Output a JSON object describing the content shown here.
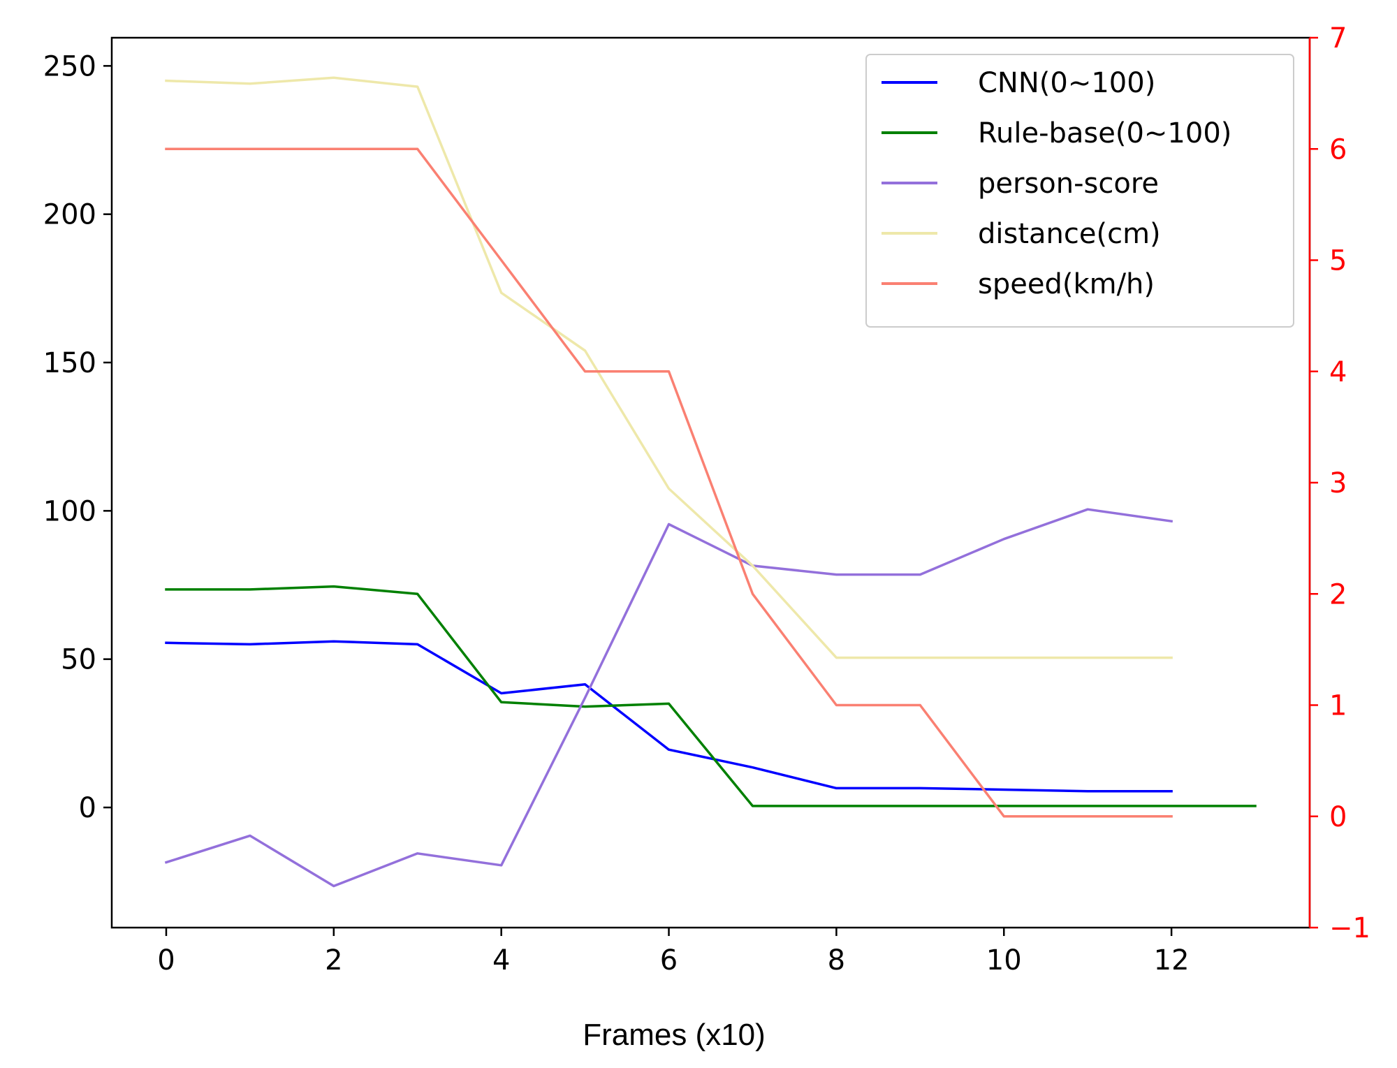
{
  "chart_data": {
    "type": "line",
    "title": "",
    "xlabel": "Frames (x10)",
    "ylabel_left": "",
    "ylabel_right": "",
    "xlim": [
      -0.65,
      13.65
    ],
    "ylim_left": [
      -40.5,
      259.5
    ],
    "ylim_right": [
      -1,
      7
    ],
    "xticks": [
      0,
      2,
      4,
      6,
      8,
      10,
      12
    ],
    "yticks_left": [
      0,
      50,
      100,
      150,
      200,
      250
    ],
    "yticks_right": [
      -1,
      0,
      1,
      2,
      3,
      4,
      5,
      6,
      7
    ],
    "yticks_right_labels": [
      "−1",
      "0",
      "1",
      "2",
      "3",
      "4",
      "5",
      "6",
      "7"
    ],
    "right_axis_color": "#ff0000",
    "grid": false,
    "legend_position": "top-right",
    "series": [
      {
        "name": "CNN(0~100)",
        "axis": "left",
        "color": "#0000ff",
        "x": [
          0,
          1,
          2,
          3,
          4,
          5,
          6,
          7,
          8,
          9,
          10,
          11,
          12
        ],
        "values": [
          55.5,
          55,
          56,
          55,
          38.5,
          41.5,
          19.5,
          13.5,
          6.5,
          6.5,
          6,
          5.5,
          5.5
        ]
      },
      {
        "name": "Rule-base(0~100)",
        "axis": "left",
        "color": "#008000",
        "x": [
          0,
          1,
          2,
          3,
          4,
          5,
          6,
          7,
          8,
          9,
          10,
          11,
          12,
          13
        ],
        "values": [
          73.5,
          73.5,
          74.5,
          72,
          35.5,
          34,
          35,
          0.5,
          0.5,
          0.5,
          0.5,
          0.5,
          0.5,
          0.5
        ]
      },
      {
        "name": "person-score",
        "axis": "left",
        "color": "#9370db",
        "x": [
          0,
          1,
          2,
          3,
          4,
          5,
          6,
          7,
          8,
          9,
          10,
          11,
          12
        ],
        "values": [
          -18.5,
          -9.5,
          -26.5,
          -15.5,
          -19.5,
          37,
          95.5,
          81.5,
          78.5,
          78.5,
          90.5,
          100.5,
          96.5
        ]
      },
      {
        "name": "distance(cm)",
        "axis": "left",
        "color": "#eee8aa",
        "x": [
          0,
          1,
          2,
          3,
          4,
          5,
          6,
          7,
          8,
          9,
          10,
          11,
          12
        ],
        "values": [
          245,
          244,
          246,
          243,
          173.5,
          154,
          107.5,
          81.5,
          50.5,
          50.5,
          50.5,
          50.5,
          50.5
        ]
      },
      {
        "name": "speed(km/h)",
        "axis": "right",
        "color": "#fa8072",
        "x": [
          0,
          1,
          2,
          3,
          4,
          5,
          6,
          7,
          8,
          9,
          10,
          11,
          12
        ],
        "values": [
          6,
          6,
          6,
          6,
          5,
          4,
          4,
          2,
          1,
          1,
          0,
          0,
          0
        ]
      }
    ]
  }
}
